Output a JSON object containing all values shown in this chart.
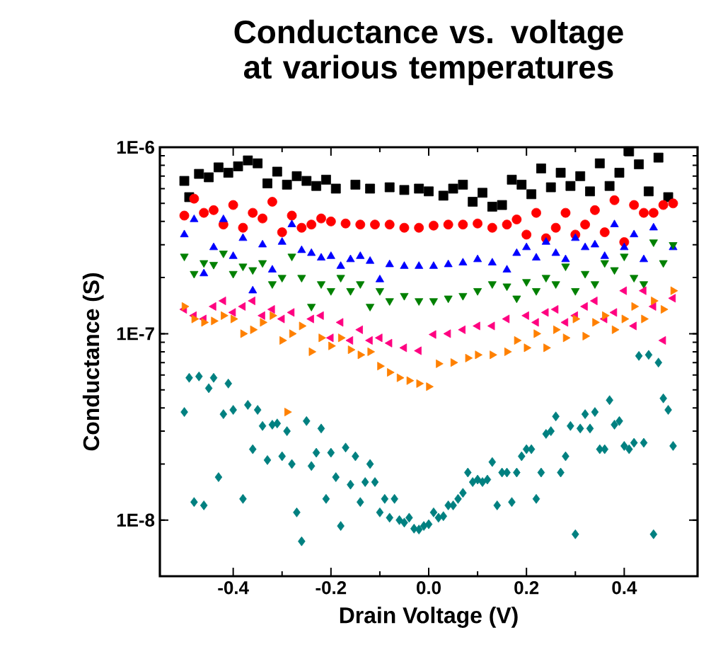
{
  "chart_data": {
    "type": "scatter",
    "title": "Conductance vs. voltage at various temperatures",
    "xlabel": "Drain Voltage (V)",
    "ylabel": "Conductance (S)",
    "log": "y",
    "xlim": [
      -0.55,
      0.55
    ],
    "ylim": [
      5e-09,
      1e-06
    ],
    "xticks": [
      -0.4,
      -0.2,
      {
        "value": 0,
        "label": "0.0"
      },
      0.2,
      0.4
    ],
    "yticks": [
      {
        "value": 1e-08,
        "label": "1E-8"
      },
      {
        "value": 1e-07,
        "label": "1E-7"
      },
      {
        "value": 1e-06,
        "label": "1E-6"
      }
    ],
    "series": [
      {
        "color": "#000000",
        "marker": "square",
        "x": [
          -0.5,
          -0.49,
          -0.47,
          -0.45,
          -0.43,
          -0.41,
          -0.39,
          -0.37,
          -0.35,
          -0.33,
          -0.31,
          -0.29,
          -0.27,
          -0.25,
          -0.23,
          -0.21,
          -0.19,
          -0.15,
          -0.12,
          -0.08,
          -0.05,
          -0.02,
          0.0,
          0.03,
          0.05,
          0.07,
          0.09,
          0.11,
          0.13,
          0.15,
          0.17,
          0.19,
          0.21,
          0.23,
          0.25,
          0.27,
          0.29,
          0.31,
          0.33,
          0.35,
          0.37,
          0.39,
          0.41,
          0.43,
          0.45,
          0.47,
          0.49
        ],
        "values": [
          6.6e-07,
          5.4e-07,
          7.2e-07,
          6.9e-07,
          7.8e-07,
          7.3e-07,
          7.9e-07,
          8.5e-07,
          8.2e-07,
          6.4e-07,
          7.4e-07,
          6.3e-07,
          7e-07,
          6.6e-07,
          6.2e-07,
          6.7e-07,
          6e-07,
          6.3e-07,
          6e-07,
          6.1e-07,
          5.9e-07,
          6e-07,
          5.8e-07,
          5.5e-07,
          6e-07,
          6.3e-07,
          5.1e-07,
          5.7e-07,
          4.8e-07,
          4.9e-07,
          6.7e-07,
          6.3e-07,
          5.6e-07,
          7.7e-07,
          6.1e-07,
          7.3e-07,
          6.2e-07,
          7e-07,
          5.8e-07,
          8.2e-07,
          6.2e-07,
          7.3e-07,
          9.5e-07,
          8.1e-07,
          5.8e-07,
          8.8e-07,
          5.4e-07
        ]
      },
      {
        "color": "#ff0000",
        "marker": "circle",
        "x": [
          -0.5,
          -0.48,
          -0.46,
          -0.44,
          -0.42,
          -0.4,
          -0.38,
          -0.36,
          -0.34,
          -0.32,
          -0.3,
          -0.28,
          -0.26,
          -0.24,
          -0.22,
          -0.2,
          -0.17,
          -0.14,
          -0.11,
          -0.08,
          -0.05,
          -0.02,
          0.01,
          0.04,
          0.07,
          0.1,
          0.13,
          0.16,
          0.18,
          0.2,
          0.22,
          0.24,
          0.26,
          0.28,
          0.3,
          0.32,
          0.34,
          0.36,
          0.38,
          0.4,
          0.42,
          0.44,
          0.46,
          0.48,
          0.5
        ],
        "values": [
          4.3e-07,
          5.3e-07,
          4.45e-07,
          4.6e-07,
          3.85e-07,
          4.9e-07,
          3.7e-07,
          4.45e-07,
          4.15e-07,
          5.1e-07,
          3.5e-07,
          4.3e-07,
          3.7e-07,
          3.85e-07,
          4.15e-07,
          4e-07,
          3.9e-07,
          3.85e-07,
          3.85e-07,
          3.85e-07,
          3.7e-07,
          3.7e-07,
          3.8e-07,
          3.85e-07,
          3.85e-07,
          3.9e-07,
          3.7e-07,
          3.85e-07,
          4.1e-07,
          3.4e-07,
          4.45e-07,
          3.25e-07,
          3.7e-07,
          4.45e-07,
          3.4e-07,
          3.85e-07,
          4.6e-07,
          3.5e-07,
          5.2e-07,
          3.1e-07,
          4.9e-07,
          4.45e-07,
          4.45e-07,
          4.9e-07,
          5e-07
        ]
      },
      {
        "color": "#0000ff",
        "marker": "triangle",
        "x": [
          -0.5,
          -0.48,
          -0.46,
          -0.44,
          -0.42,
          -0.4,
          -0.38,
          -0.36,
          -0.34,
          -0.32,
          -0.3,
          -0.28,
          -0.26,
          -0.24,
          -0.22,
          -0.2,
          -0.18,
          -0.16,
          -0.14,
          -0.12,
          -0.1,
          -0.08,
          -0.05,
          -0.02,
          0.01,
          0.04,
          0.07,
          0.1,
          0.13,
          0.16,
          0.18,
          0.2,
          0.22,
          0.24,
          0.26,
          0.28,
          0.3,
          0.32,
          0.34,
          0.36,
          0.38,
          0.4,
          0.42,
          0.44,
          0.46,
          0.48,
          0.5
        ],
        "values": [
          3.4e-07,
          4.1e-07,
          2.1e-07,
          2.9e-07,
          4.1e-07,
          2.6e-07,
          3.25e-07,
          1.7e-07,
          3e-07,
          2.2e-07,
          3.1e-07,
          3.85e-07,
          2.8e-07,
          2.7e-07,
          2.55e-07,
          2.6e-07,
          2.3e-07,
          2.5e-07,
          2.6e-07,
          2.45e-07,
          1.95e-07,
          2.35e-07,
          2.3e-07,
          2.3e-07,
          2.3e-07,
          2.35e-07,
          2.4e-07,
          2.5e-07,
          2.4e-07,
          2.2e-07,
          2.7e-07,
          2.9e-07,
          2.55e-07,
          3.1e-07,
          2.7e-07,
          2.5e-07,
          3.25e-07,
          2.9e-07,
          3e-07,
          2.6e-07,
          3.85e-07,
          2.9e-07,
          3.4e-07,
          2.5e-07,
          3.7e-07,
          null,
          2.9e-07
        ]
      },
      {
        "color": "#008000",
        "marker": "triangle-down",
        "x": [
          -0.5,
          -0.48,
          -0.46,
          -0.44,
          -0.42,
          -0.4,
          -0.38,
          -0.36,
          -0.34,
          -0.32,
          -0.3,
          -0.28,
          -0.26,
          -0.24,
          -0.22,
          -0.2,
          -0.18,
          -0.16,
          -0.14,
          -0.12,
          -0.1,
          -0.08,
          -0.05,
          -0.02,
          0.01,
          0.04,
          0.07,
          0.1,
          0.13,
          0.16,
          0.18,
          0.2,
          0.22,
          0.24,
          0.26,
          0.28,
          0.3,
          0.32,
          0.34,
          0.36,
          0.38,
          0.4,
          0.42,
          0.44,
          0.46,
          0.48,
          0.5
        ],
        "values": [
          2.6e-07,
          2.1e-07,
          2.4e-07,
          2.35e-07,
          2.7e-07,
          2.1e-07,
          2.3e-07,
          2.2e-07,
          2.4e-07,
          1.85e-07,
          2e-07,
          2.6e-07,
          2e-07,
          1.4e-07,
          1.85e-07,
          1.7e-07,
          2e-07,
          1.7e-07,
          1.85e-07,
          1.4e-07,
          1.7e-07,
          1.5e-07,
          1.6e-07,
          1.5e-07,
          1.5e-07,
          1.55e-07,
          1.6e-07,
          1.7e-07,
          1.85e-07,
          1.8e-07,
          1.55e-07,
          1.9e-07,
          1.7e-07,
          2e-07,
          1.85e-07,
          2.3e-07,
          1.7e-07,
          2.1e-07,
          1.85e-07,
          2.4e-07,
          2.2e-07,
          2.6e-07,
          2e-07,
          1.85e-07,
          3.1e-07,
          2.4e-07,
          3e-07
        ]
      },
      {
        "color": "#ff0080",
        "marker": "triangle-left",
        "x": [
          -0.5,
          -0.48,
          -0.46,
          -0.44,
          -0.42,
          -0.4,
          -0.38,
          -0.36,
          -0.34,
          -0.32,
          -0.3,
          -0.28,
          -0.26,
          -0.24,
          -0.22,
          -0.2,
          -0.18,
          -0.16,
          -0.14,
          -0.12,
          -0.1,
          -0.08,
          -0.05,
          -0.02,
          0.01,
          0.04,
          0.07,
          0.1,
          0.13,
          0.16,
          0.18,
          0.2,
          0.22,
          0.24,
          0.26,
          0.28,
          0.3,
          0.32,
          0.34,
          0.36,
          0.38,
          0.4,
          0.42,
          0.44,
          0.46,
          0.48,
          0.5
        ],
        "values": [
          1.35e-07,
          1.25e-07,
          1.2e-07,
          1.4e-07,
          1.5e-07,
          1.3e-07,
          1.4e-07,
          1.5e-07,
          1.25e-07,
          1.35e-07,
          1.2e-07,
          1.3e-07,
          null,
          1.2e-07,
          1.25e-07,
          9.5e-08,
          1.15e-07,
          9.2e-08,
          1.05e-07,
          9.2e-08,
          9.5e-08,
          8.9e-08,
          8.4e-08,
          8.1e-08,
          9.9e-08,
          1e-07,
          1.05e-07,
          1.1e-07,
          1.1e-07,
          1.2e-07,
          null,
          1.25e-07,
          1.15e-07,
          1.3e-07,
          1.35e-07,
          1.15e-07,
          1.25e-07,
          1.4e-07,
          1.5e-07,
          1.2e-07,
          1.3e-07,
          1.7e-07,
          1.1e-07,
          1.7e-07,
          1.4e-07,
          9.2e-08,
          1.55e-07
        ]
      },
      {
        "color": "#ff8000",
        "marker": "triangle-right",
        "x": [
          -0.5,
          -0.48,
          -0.46,
          -0.44,
          -0.42,
          -0.4,
          -0.38,
          -0.36,
          -0.34,
          -0.32,
          -0.3,
          -0.29,
          -0.28,
          -0.26,
          -0.24,
          -0.22,
          -0.2,
          -0.18,
          -0.16,
          -0.14,
          -0.12,
          -0.1,
          -0.08,
          -0.06,
          -0.04,
          -0.02,
          0.0,
          0.02,
          0.05,
          0.08,
          0.1,
          0.13,
          0.16,
          0.18,
          0.2,
          0.22,
          0.24,
          0.26,
          0.28,
          0.3,
          0.32,
          0.34,
          0.36,
          0.38,
          0.4,
          0.42,
          0.44,
          0.46,
          0.48,
          0.5
        ],
        "values": [
          1.4e-07,
          1.2e-07,
          1.15e-07,
          1.17e-07,
          1.25e-07,
          1.2e-07,
          1e-07,
          1.05e-07,
          1.15e-07,
          1.25e-07,
          9.2e-08,
          3.8e-08,
          1e-07,
          1.1e-07,
          8e-08,
          9.5e-08,
          8.6e-08,
          9.5e-08,
          8.2e-08,
          7.7e-08,
          8e-08,
          6.7e-08,
          6.2e-08,
          5.8e-08,
          5.6e-08,
          5.4e-08,
          5.2e-08,
          6.9e-08,
          7e-08,
          7.4e-08,
          7.7e-08,
          7.7e-08,
          8e-08,
          9.2e-08,
          8.4e-08,
          1e-07,
          8.4e-08,
          1.05e-07,
          9.5e-08,
          1.2e-07,
          9.7e-08,
          1.15e-07,
          1.25e-07,
          1.05e-07,
          1.2e-07,
          1.4e-07,
          1.2e-07,
          1.5e-07,
          1.35e-07,
          1.7e-07
        ]
      },
      {
        "color": "#008080",
        "marker": "diamond",
        "x": [
          -0.5,
          -0.49,
          -0.48,
          -0.47,
          -0.46,
          -0.45,
          -0.44,
          -0.43,
          -0.42,
          -0.41,
          -0.4,
          -0.38,
          -0.37,
          -0.36,
          -0.35,
          -0.34,
          -0.33,
          -0.32,
          -0.31,
          -0.3,
          -0.29,
          -0.28,
          -0.27,
          -0.26,
          -0.25,
          -0.24,
          -0.23,
          -0.22,
          -0.21,
          -0.2,
          -0.19,
          -0.18,
          -0.17,
          -0.16,
          -0.15,
          -0.14,
          -0.13,
          -0.12,
          -0.11,
          -0.1,
          -0.09,
          -0.08,
          -0.07,
          -0.06,
          -0.05,
          -0.04,
          -0.03,
          -0.02,
          -0.01,
          0.0,
          0.01,
          0.02,
          0.03,
          0.04,
          0.05,
          0.06,
          0.07,
          0.08,
          0.09,
          0.1,
          0.11,
          0.12,
          0.13,
          0.14,
          0.15,
          0.16,
          0.17,
          0.18,
          0.19,
          0.2,
          0.21,
          0.22,
          0.23,
          0.24,
          0.25,
          0.26,
          0.27,
          0.28,
          0.29,
          0.3,
          0.31,
          0.32,
          0.33,
          0.34,
          0.35,
          0.36,
          0.37,
          0.38,
          0.39,
          0.4,
          0.41,
          0.42,
          0.43,
          0.44,
          0.45,
          0.46,
          0.47,
          0.48,
          0.49,
          0.5
        ],
        "values": [
          3.8e-08,
          5.8e-08,
          1.25e-08,
          5.9e-08,
          1.2e-08,
          5.1e-08,
          5.8e-08,
          1.7e-08,
          3.7e-08,
          5.4e-08,
          3.9e-08,
          1.3e-08,
          4.15e-08,
          2.4e-08,
          3.9e-08,
          3.2e-08,
          2.1e-08,
          3.25e-08,
          3.3e-08,
          2.2e-08,
          3e-08,
          2e-08,
          1.1e-08,
          7.7e-09,
          3.4e-08,
          1.95e-08,
          2.3e-08,
          3.1e-08,
          1.3e-08,
          2.3e-08,
          1.7e-08,
          9.3e-09,
          2.45e-08,
          1.55e-08,
          2.2e-08,
          1.25e-08,
          1.6e-08,
          2e-08,
          1.6e-08,
          1.1e-08,
          1.3e-08,
          1.03e-08,
          1.3e-08,
          1e-08,
          9.7e-09,
          1.03e-08,
          9e-09,
          8.9e-09,
          9.3e-09,
          9.5e-09,
          1.1e-08,
          1.03e-08,
          1.05e-08,
          1.2e-08,
          1.2e-08,
          1.3e-08,
          1.4e-08,
          1.8e-08,
          1.6e-08,
          1.65e-08,
          1.6e-08,
          1.65e-08,
          2.05e-08,
          1.2e-08,
          1.8e-08,
          1.8e-08,
          1.25e-08,
          1.8e-08,
          2.2e-08,
          2.4e-08,
          2.4e-08,
          1.3e-08,
          1.8e-08,
          2.9e-08,
          3e-08,
          3.6e-08,
          1.8e-08,
          2.2e-08,
          3.2e-08,
          8.4e-09,
          3.1e-08,
          3.7e-08,
          3.1e-08,
          3.8e-08,
          2.4e-08,
          2.4e-08,
          4.4e-08,
          3.25e-08,
          3.4e-08,
          2.5e-08,
          2.4e-08,
          2.6e-08,
          7.6e-08,
          2.6e-08,
          7.7e-08,
          8.4e-09,
          7e-08,
          4.5e-08,
          3.9e-08,
          2.5e-08
        ]
      }
    ]
  }
}
